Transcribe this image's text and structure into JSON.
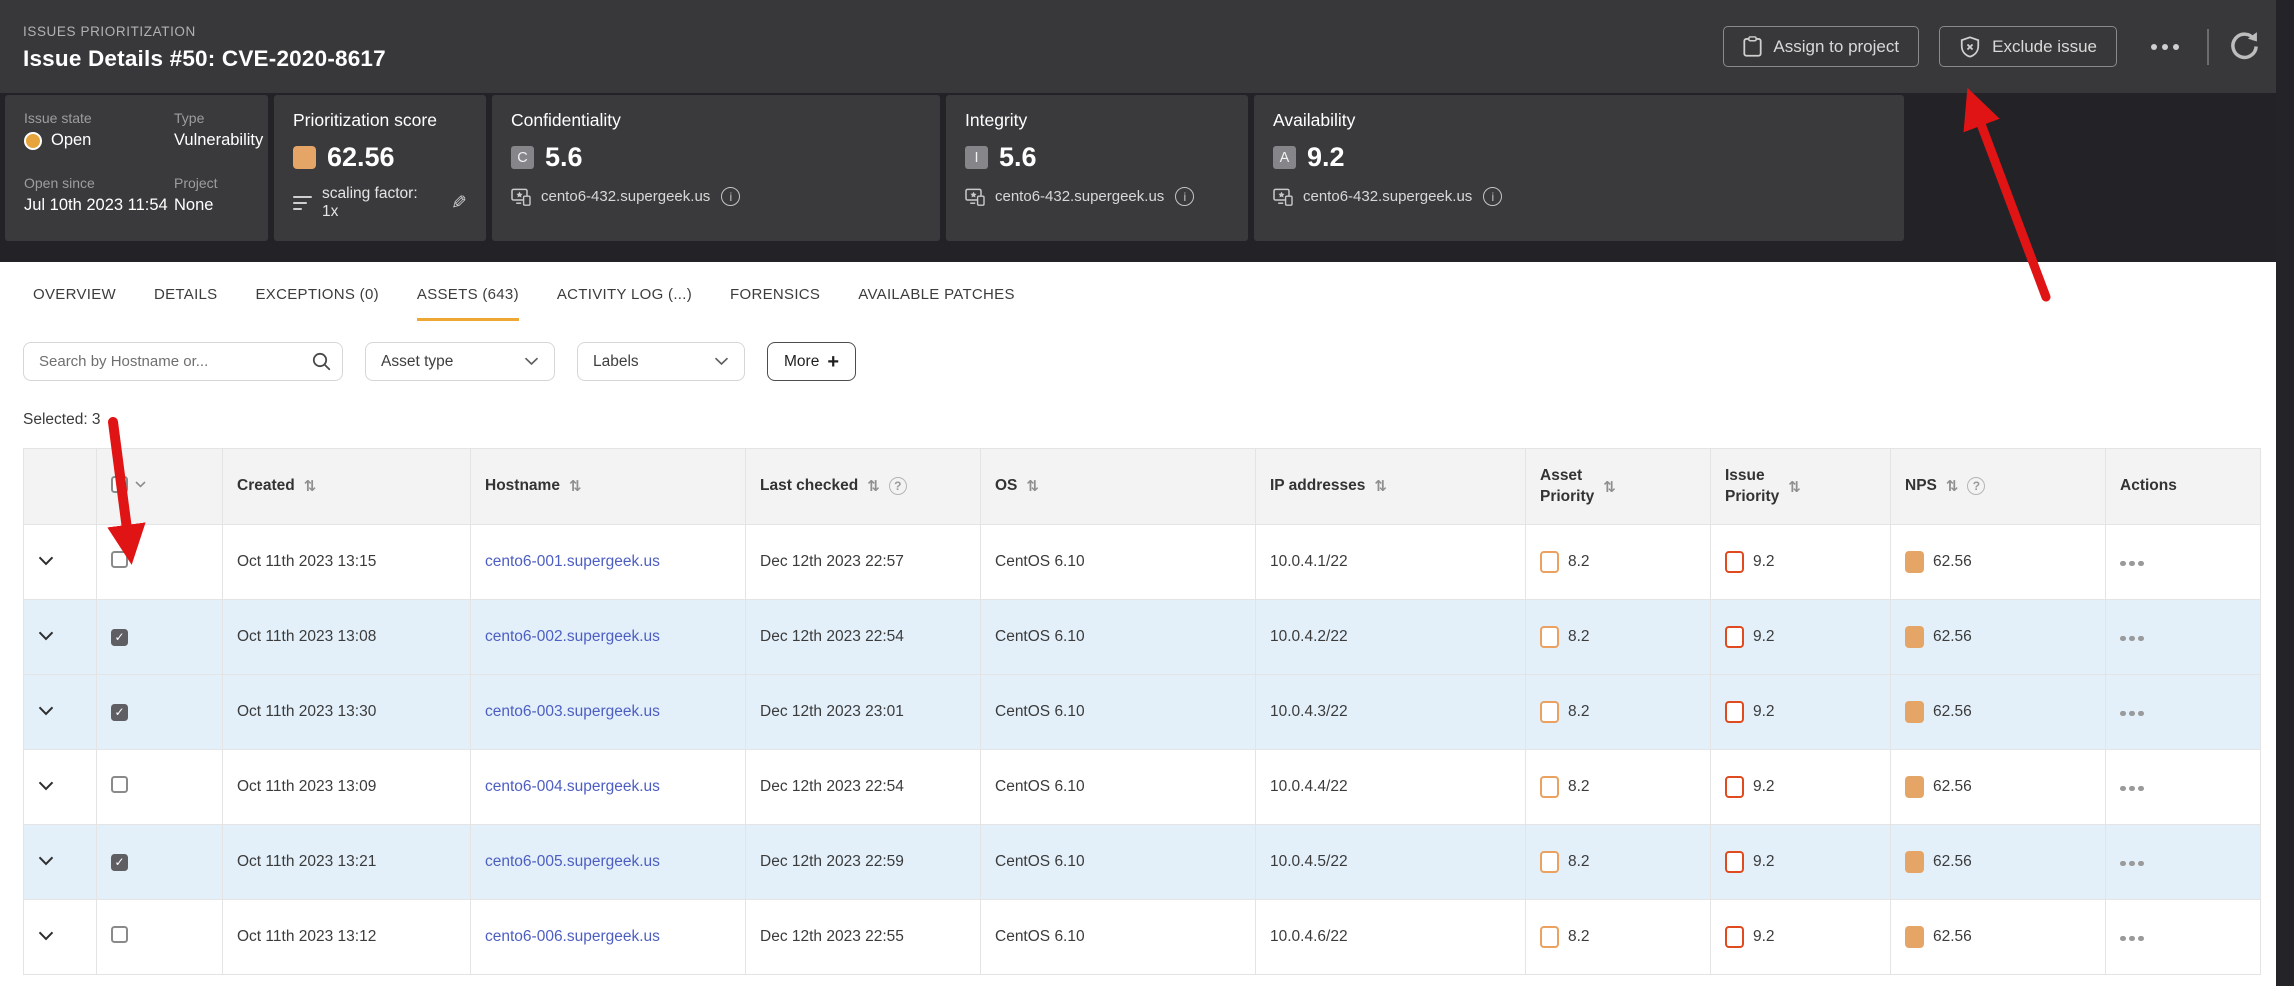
{
  "header": {
    "breadcrumb": "ISSUES PRIORITIZATION",
    "title": "Issue Details #50: CVE-2020-8617",
    "assign_button": "Assign to project",
    "exclude_button": "Exclude issue"
  },
  "summary": {
    "issue_state_label": "Issue state",
    "issue_state_value": "Open",
    "type_label": "Type",
    "type_value": "Vulnerability",
    "open_since_label": "Open since",
    "open_since_value": "Jul 10th 2023 11:54",
    "project_label": "Project",
    "project_value": "None",
    "score": {
      "title": "Prioritization score",
      "value": "62.56",
      "scaling": "scaling factor: 1x"
    },
    "cia": [
      {
        "title": "Confidentiality",
        "badge": "C",
        "value": "5.6",
        "host": "cento6-432.supergeek.us"
      },
      {
        "title": "Integrity",
        "badge": "I",
        "value": "5.6",
        "host": "cento6-432.supergeek.us"
      },
      {
        "title": "Availability",
        "badge": "A",
        "value": "9.2",
        "host": "cento6-432.supergeek.us"
      }
    ]
  },
  "tabs": [
    {
      "label": "OVERVIEW",
      "active": false
    },
    {
      "label": "DETAILS",
      "active": false
    },
    {
      "label": "EXCEPTIONS (0)",
      "active": false
    },
    {
      "label": "ASSETS (643)",
      "active": true
    },
    {
      "label": "ACTIVITY LOG (...)",
      "active": false
    },
    {
      "label": "FORENSICS",
      "active": false
    },
    {
      "label": "AVAILABLE PATCHES",
      "active": false
    }
  ],
  "filters": {
    "search_placeholder": "Search by Hostname or...",
    "asset_type": "Asset type",
    "labels": "Labels",
    "more": "More"
  },
  "selected_text": "Selected: 3",
  "table": {
    "columns": [
      {
        "label": "Created",
        "cls": "c-created",
        "sort": true,
        "help": false
      },
      {
        "label": "Hostname",
        "cls": "c-host",
        "sort": true,
        "help": false
      },
      {
        "label": "Last checked",
        "cls": "c-last",
        "sort": true,
        "help": true
      },
      {
        "label": "OS",
        "cls": "c-os",
        "sort": true,
        "help": false
      },
      {
        "label": "IP addresses",
        "cls": "c-ip",
        "sort": true,
        "help": false
      },
      {
        "label": "Asset\nPriority",
        "cls": "c-ap",
        "sort": true,
        "help": false
      },
      {
        "label": "Issue\nPriority",
        "cls": "c-ip2",
        "sort": true,
        "help": false
      },
      {
        "label": "NPS",
        "cls": "c-nps",
        "sort": true,
        "help": true
      },
      {
        "label": "Actions",
        "cls": "c-act",
        "sort": false,
        "help": false
      }
    ],
    "rows": [
      {
        "checked": false,
        "created": "Oct 11th 2023 13:15",
        "hostname": "cento6-001.supergeek.us",
        "last_checked": "Dec 12th 2023 22:57",
        "os": "CentOS 6.10",
        "ip": "10.0.4.1/22",
        "asset_priority": "8.2",
        "issue_priority": "9.2",
        "nps": "62.56"
      },
      {
        "checked": true,
        "created": "Oct 11th 2023 13:08",
        "hostname": "cento6-002.supergeek.us",
        "last_checked": "Dec 12th 2023 22:54",
        "os": "CentOS 6.10",
        "ip": "10.0.4.2/22",
        "asset_priority": "8.2",
        "issue_priority": "9.2",
        "nps": "62.56"
      },
      {
        "checked": true,
        "created": "Oct 11th 2023 13:30",
        "hostname": "cento6-003.supergeek.us",
        "last_checked": "Dec 12th 2023 23:01",
        "os": "CentOS 6.10",
        "ip": "10.0.4.3/22",
        "asset_priority": "8.2",
        "issue_priority": "9.2",
        "nps": "62.56"
      },
      {
        "checked": false,
        "created": "Oct 11th 2023 13:09",
        "hostname": "cento6-004.supergeek.us",
        "last_checked": "Dec 12th 2023 22:54",
        "os": "CentOS 6.10",
        "ip": "10.0.4.4/22",
        "asset_priority": "8.2",
        "issue_priority": "9.2",
        "nps": "62.56"
      },
      {
        "checked": true,
        "created": "Oct 11th 2023 13:21",
        "hostname": "cento6-005.supergeek.us",
        "last_checked": "Dec 12th 2023 22:59",
        "os": "CentOS 6.10",
        "ip": "10.0.4.5/22",
        "asset_priority": "8.2",
        "issue_priority": "9.2",
        "nps": "62.56"
      },
      {
        "checked": false,
        "created": "Oct 11th 2023 13:12",
        "hostname": "cento6-006.supergeek.us",
        "last_checked": "Dec 12th 2023 22:55",
        "os": "CentOS 6.10",
        "ip": "10.0.4.6/22",
        "asset_priority": "8.2",
        "issue_priority": "9.2",
        "nps": "62.56"
      }
    ]
  },
  "colors": {
    "header_bg": "#38383a",
    "band_bg": "#232327",
    "card_bg": "#3a3a3c",
    "accent_open": "#e7a33c",
    "score_orange": "#e5a567",
    "asset_priority_border": "#eba15f",
    "issue_priority_border": "#df4a1f",
    "tab_underline": "#efa733",
    "link_blue": "#4d5ec2",
    "selected_row_bg": "#e3f0fa",
    "annotation_arrow": "#e01414"
  }
}
